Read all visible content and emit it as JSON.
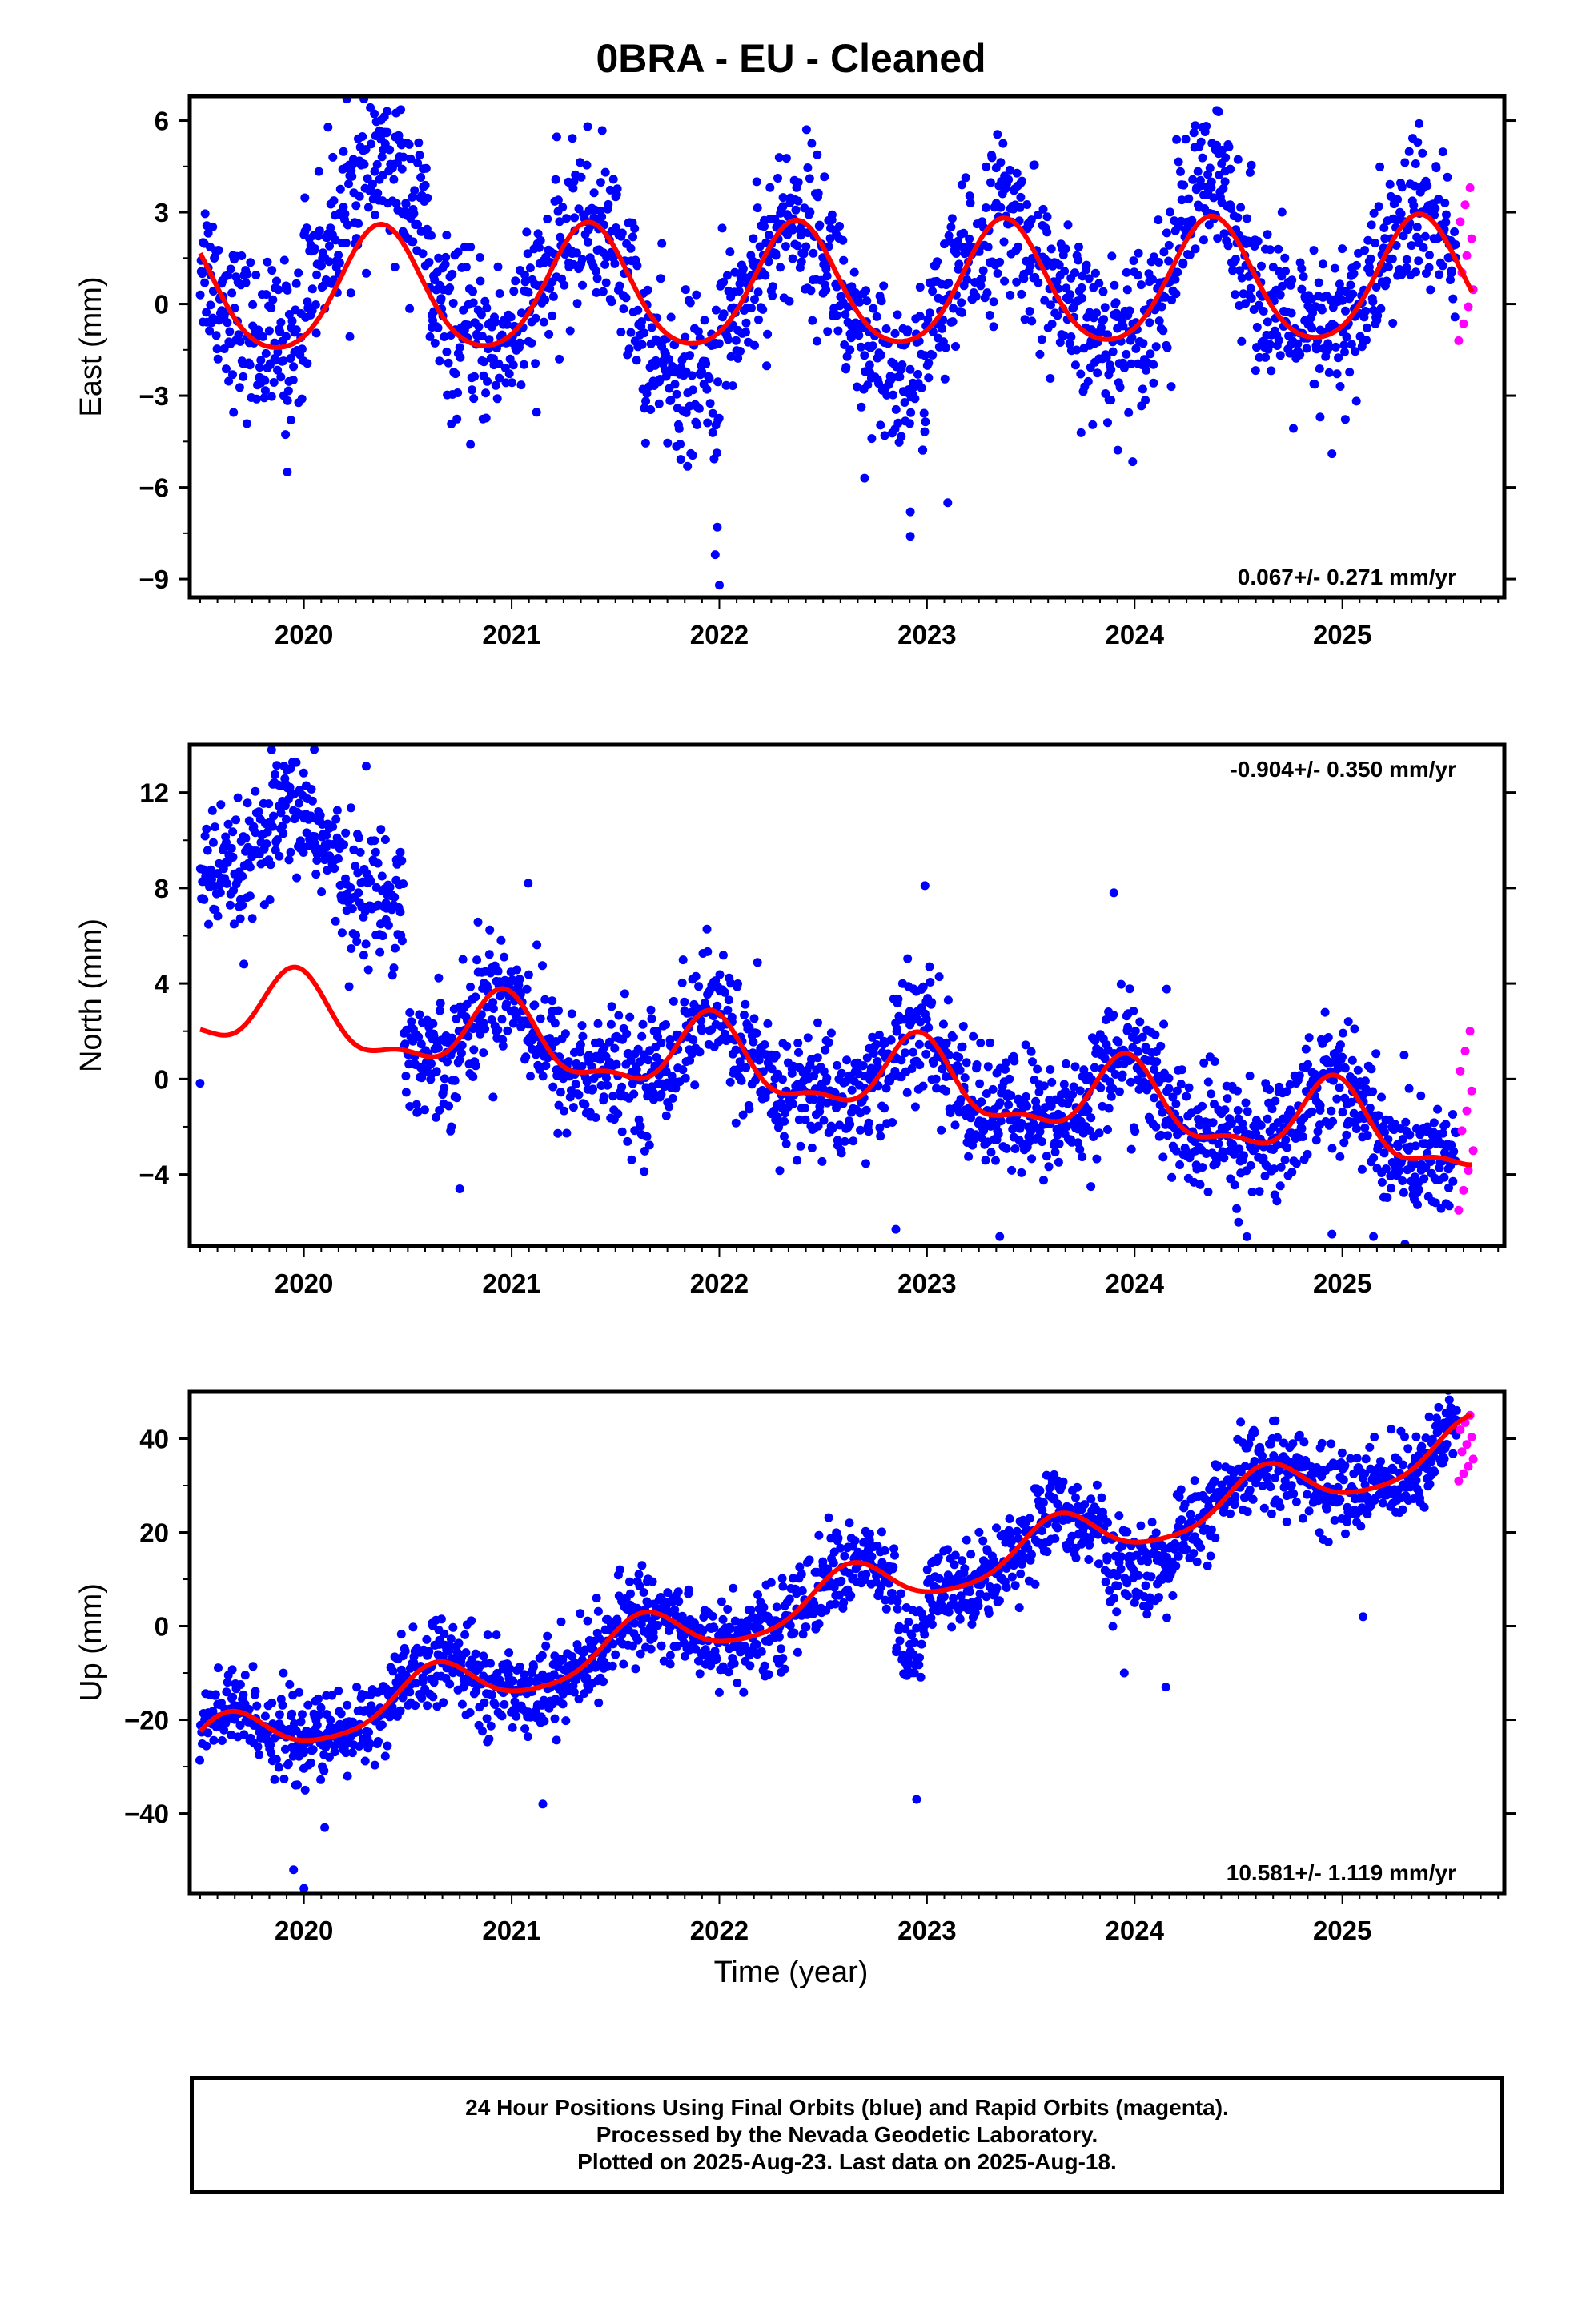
{
  "title": "0BRA  - EU - Cleaned",
  "xlabel": "Time (year)",
  "footer": {
    "line1": "24 Hour Positions Using Final Orbits (blue) and Rapid Orbits (magenta).",
    "line2": "Processed by the Nevada Geodetic Laboratory.",
    "line3": "Plotted on 2025-Aug-23. Last data on 2025-Aug-18."
  },
  "colors": {
    "final_orbits": "#0000ff",
    "rapid_orbits": "#ff00ff",
    "model_fit": "#ff0000",
    "frame": "#000000"
  },
  "chart_data": [
    {
      "type": "scatter",
      "component": "East",
      "ylabel": "East (mm)",
      "xlim": [
        2019.45,
        2025.78
      ],
      "ylim": [
        -9.6,
        6.8
      ],
      "yticks": [
        -9,
        -6,
        -3,
        0,
        3,
        6
      ],
      "xticks": [
        2020,
        2021,
        2022,
        2023,
        2024,
        2025
      ],
      "rate_label": "0.067+/- 0.271 mm/yr",
      "rate_position": "bottom-right",
      "model": {
        "offset": 0.3,
        "rate": 0.067,
        "annual_amp": 2.0,
        "annual_phase_peak": 0.37,
        "semiannual_amp": 0.25
      },
      "series": [
        {
          "name": "Final Orbits",
          "x_start": 2019.5,
          "x_end": 2025.55,
          "count": 1950,
          "noise_sd": 1.3,
          "extra_offset": [
            [
              2020.0,
              2020.6,
              2.0
            ],
            [
              2021.6,
              2022.0,
              -1.3
            ],
            [
              2022.6,
              2023.0,
              -1.2
            ],
            [
              2024.2,
              2024.5,
              0.9
            ]
          ],
          "outliers": [
            [
              2021.98,
              -8.2
            ],
            [
              2022.0,
              -9.2
            ],
            [
              2021.99,
              -7.3
            ],
            [
              2022.92,
              -7.6
            ],
            [
              2022.92,
              -6.8
            ],
            [
              2022.7,
              -5.7
            ],
            [
              2023.1,
              -6.5
            ],
            [
              2019.92,
              -5.5
            ],
            [
              2024.95,
              -4.9
            ],
            [
              2021.3,
              4.0
            ],
            [
              2022.18,
              4.0
            ],
            [
              2025.37,
              5.9
            ]
          ]
        },
        {
          "name": "Rapid Orbits",
          "x_start": 2025.56,
          "x_end": 2025.63,
          "count": 10,
          "y_range": [
            -1.2,
            3.8
          ]
        }
      ]
    },
    {
      "type": "scatter",
      "component": "North",
      "ylabel": "North (mm)",
      "xlim": [
        2019.45,
        2025.78
      ],
      "ylim": [
        -7.0,
        14.0
      ],
      "yticks": [
        -4,
        0,
        4,
        8,
        12
      ],
      "xticks": [
        2020,
        2021,
        2022,
        2023,
        2024,
        2025
      ],
      "rate_label": "-0.904+/- 0.350 mm/yr",
      "rate_position": "top-right",
      "model": {
        "offset": 3.0,
        "rate": -0.904,
        "annual_amp": 1.5,
        "annual_phase_peak": 0.96,
        "semiannual_amp": 0.6
      },
      "series": [
        {
          "name": "Final Orbits",
          "x_start": 2019.5,
          "x_end": 2025.55,
          "count": 1950,
          "noise_sd": 1.3,
          "extra_offset": [
            [
              2019.5,
              2020.48,
              6.5
            ]
          ],
          "outliers": [
            [
              2020.05,
              13.8
            ],
            [
              2020.3,
              13.1
            ],
            [
              2021.08,
              8.2
            ],
            [
              2022.99,
              8.1
            ],
            [
              2023.9,
              7.8
            ],
            [
              2022.85,
              -6.3
            ],
            [
              2023.35,
              -6.6
            ],
            [
              2024.95,
              -6.5
            ],
            [
              2024.5,
              -6.0
            ],
            [
              2025.15,
              -6.6
            ],
            [
              2020.75,
              -4.6
            ]
          ]
        },
        {
          "name": "Rapid Orbits",
          "x_start": 2025.56,
          "x_end": 2025.63,
          "count": 10,
          "y_range": [
            -5.5,
            2.0
          ]
        }
      ]
    },
    {
      "type": "scatter",
      "component": "Up",
      "ylabel": "Up (mm)",
      "xlim": [
        2019.45,
        2025.78
      ],
      "ylim": [
        -57.0,
        50.0
      ],
      "yticks": [
        -40,
        -20,
        0,
        20,
        40
      ],
      "xticks": [
        2020,
        2021,
        2022,
        2023,
        2024,
        2025
      ],
      "rate_label": "10.581+/- 1.119 mm/yr",
      "rate_position": "bottom-right",
      "model": {
        "offset": -26.0,
        "rate": 10.581,
        "annual_amp": 5.3,
        "annual_phase_peak": 0.63,
        "semiannual_amp": 1.0
      },
      "series": [
        {
          "name": "Final Orbits",
          "x_start": 2019.5,
          "x_end": 2025.55,
          "count": 1950,
          "noise_sd": 4.5,
          "extra_offset": [
            [
              2022.85,
              2023.0,
              -12.0
            ],
            [
              2023.85,
              2024.2,
              -6.0
            ]
          ],
          "outliers": [
            [
              2019.95,
              -52.0
            ],
            [
              2020.0,
              -56.0
            ],
            [
              2020.1,
              -43.0
            ],
            [
              2022.95,
              -37.0
            ],
            [
              2021.15,
              -38.0
            ],
            [
              2023.95,
              -10.0
            ],
            [
              2024.15,
              -13.0
            ],
            [
              2025.1,
              2.0
            ],
            [
              2025.55,
              46.0
            ]
          ]
        },
        {
          "name": "Rapid Orbits",
          "x_start": 2025.56,
          "x_end": 2025.63,
          "count": 10,
          "y_range": [
            31.0,
            45.0
          ]
        }
      ]
    }
  ]
}
